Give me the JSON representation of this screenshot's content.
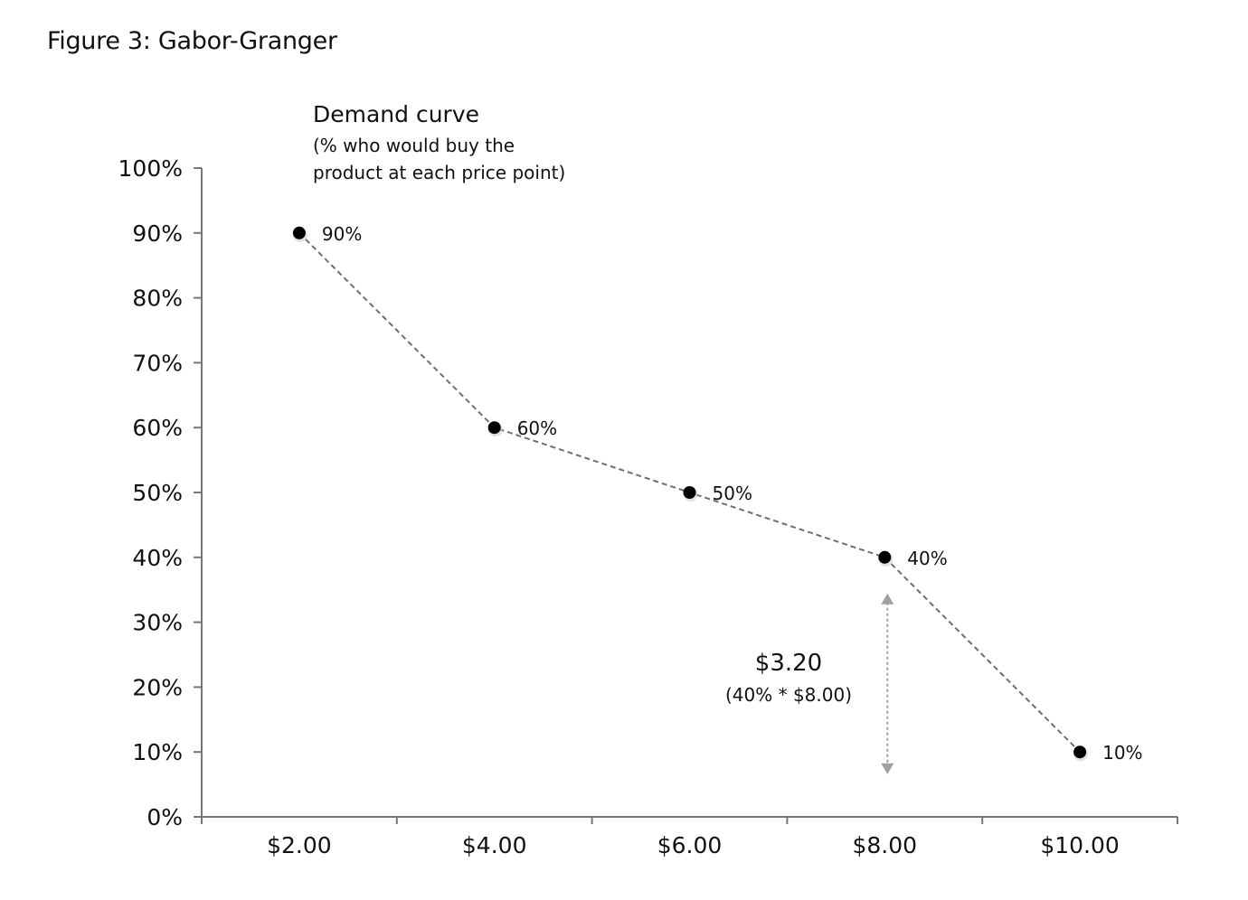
{
  "figure_title": "Figure 3: Gabor-Granger",
  "chart_data": {
    "type": "line",
    "title": "Demand curve",
    "subtitle": [
      "(% who would buy the",
      "product at each price point)"
    ],
    "categories": [
      "$2.00",
      "$4.00",
      "$6.00",
      "$8.00",
      "$10.00"
    ],
    "values": [
      90,
      60,
      50,
      40,
      10
    ],
    "point_labels": [
      "90%",
      "60%",
      "50%",
      "40%",
      "10%"
    ],
    "y_ticks": [
      "0%",
      "10%",
      "20%",
      "30%",
      "40%",
      "50%",
      "60%",
      "70%",
      "80%",
      "90%",
      "100%"
    ],
    "ylim": [
      0,
      100
    ],
    "grid": false,
    "line_style": "dashed",
    "line_color": "#6f6f6f",
    "marker_color": "#000000",
    "annotation": {
      "category": "$8.00",
      "from_value": 0,
      "to_value": 40,
      "value_label": "$3.20",
      "formula_label": "(40% * $8.00)",
      "color": "#a0a0a0"
    }
  }
}
